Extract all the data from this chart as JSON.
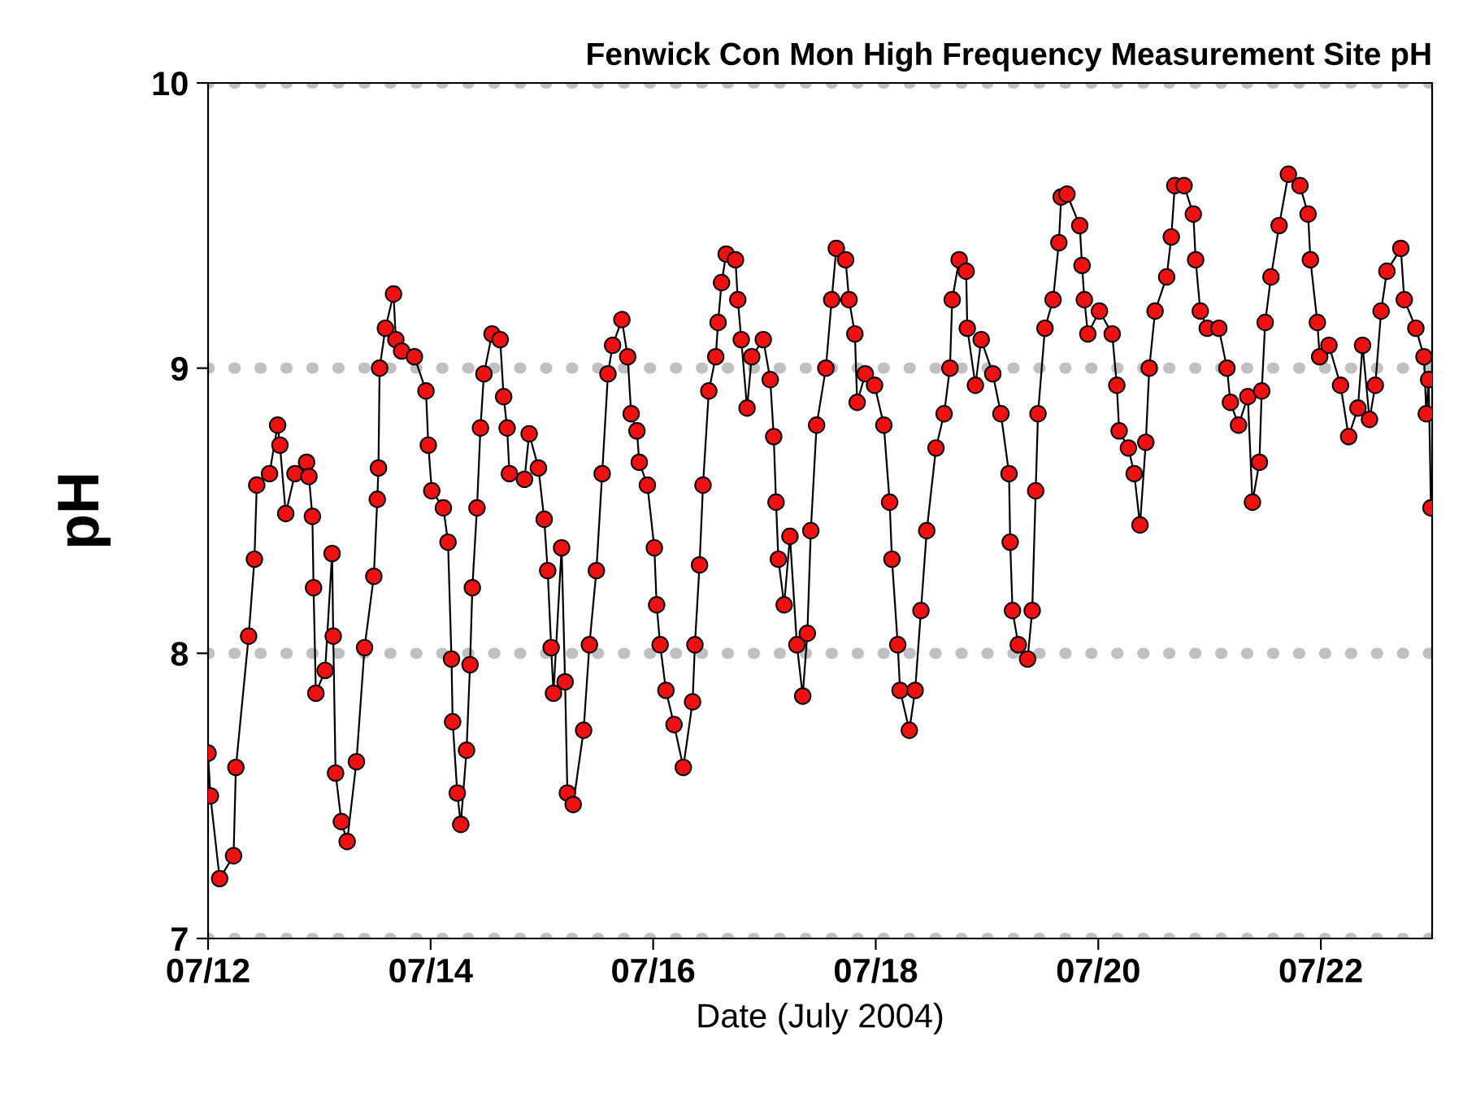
{
  "chart_data": {
    "type": "line",
    "title": "Fenwick Con Mon High Frequency Measurement Site pH",
    "xlabel": "Date (July 2004)",
    "ylabel": "pH",
    "xlim": [
      "2004-07-12",
      "2004-07-23"
    ],
    "xticks": [
      {
        "value": "2004-07-12",
        "label": "07/12"
      },
      {
        "value": "2004-07-14",
        "label": "07/14"
      },
      {
        "value": "2004-07-16",
        "label": "07/16"
      },
      {
        "value": "2004-07-18",
        "label": "07/18"
      },
      {
        "value": "2004-07-20",
        "label": "07/20"
      },
      {
        "value": "2004-07-22",
        "label": "07/22"
      }
    ],
    "ylim": [
      7,
      10
    ],
    "yticks": [
      7,
      8,
      9,
      10
    ],
    "grid": "y",
    "marker": "circle",
    "line_style": "solid",
    "series": [
      {
        "color": "#ee1111",
        "x": [
          "2004-07-12T00:00",
          "2004-07-12T00:30",
          "2004-07-12T02:30",
          "2004-07-12T05:30",
          "2004-07-12T06:00",
          "2004-07-12T08:45",
          "2004-07-12T10:00",
          "2004-07-12T10:30",
          "2004-07-12T13:15",
          "2004-07-12T15:00",
          "2004-07-12T15:30",
          "2004-07-12T16:45",
          "2004-07-12T18:45",
          "2004-07-12T21:15",
          "2004-07-12T21:45",
          "2004-07-12T22:30",
          "2004-07-12T22:45",
          "2004-07-12T23:15",
          "2004-07-13T01:15",
          "2004-07-13T02:45",
          "2004-07-13T03:00",
          "2004-07-13T03:30",
          "2004-07-13T04:45",
          "2004-07-13T06:00",
          "2004-07-13T08:00",
          "2004-07-13T09:45",
          "2004-07-13T11:45",
          "2004-07-13T12:30",
          "2004-07-13T12:45",
          "2004-07-13T13:00",
          "2004-07-13T14:15",
          "2004-07-13T16:00",
          "2004-07-13T16:30",
          "2004-07-13T17:45",
          "2004-07-13T20:30",
          "2004-07-13T23:00",
          "2004-07-13T23:30",
          "2004-07-14T00:15",
          "2004-07-14T02:45",
          "2004-07-14T03:45",
          "2004-07-14T04:30",
          "2004-07-14T04:45",
          "2004-07-14T05:45",
          "2004-07-14T06:30",
          "2004-07-14T07:45",
          "2004-07-14T08:30",
          "2004-07-14T09:00",
          "2004-07-14T10:00",
          "2004-07-14T10:45",
          "2004-07-14T11:30",
          "2004-07-14T13:15",
          "2004-07-14T15:00",
          "2004-07-14T15:45",
          "2004-07-14T16:30",
          "2004-07-14T17:00",
          "2004-07-14T20:15",
          "2004-07-14T21:15",
          "2004-07-14T23:15",
          "2004-07-15T00:30",
          "2004-07-15T01:15",
          "2004-07-15T02:00",
          "2004-07-15T02:30",
          "2004-07-15T04:15",
          "2004-07-15T05:00",
          "2004-07-15T05:30",
          "2004-07-15T06:45",
          "2004-07-15T09:00",
          "2004-07-15T10:15",
          "2004-07-15T11:45",
          "2004-07-15T13:00",
          "2004-07-15T14:15",
          "2004-07-15T15:15",
          "2004-07-15T17:15",
          "2004-07-15T18:30",
          "2004-07-15T19:15",
          "2004-07-15T20:30",
          "2004-07-15T21:00",
          "2004-07-15T22:45",
          "2004-07-16T00:15",
          "2004-07-16T00:45",
          "2004-07-16T01:30",
          "2004-07-16T02:45",
          "2004-07-16T04:30",
          "2004-07-16T06:30",
          "2004-07-16T08:30",
          "2004-07-16T09:00",
          "2004-07-16T10:00",
          "2004-07-16T10:45",
          "2004-07-16T12:00",
          "2004-07-16T13:30",
          "2004-07-16T14:00",
          "2004-07-16T14:45",
          "2004-07-16T15:45",
          "2004-07-16T17:45",
          "2004-07-16T18:15",
          "2004-07-16T19:00",
          "2004-07-16T20:15",
          "2004-07-16T21:15",
          "2004-07-16T23:45",
          "2004-07-17T01:15",
          "2004-07-17T02:00",
          "2004-07-17T02:30",
          "2004-07-17T03:00",
          "2004-07-17T04:15",
          "2004-07-17T05:30",
          "2004-07-17T07:00",
          "2004-07-17T08:15",
          "2004-07-17T09:15",
          "2004-07-17T10:00",
          "2004-07-17T11:15",
          "2004-07-17T13:15",
          "2004-07-17T14:30",
          "2004-07-17T15:30",
          "2004-07-17T17:30",
          "2004-07-17T18:15",
          "2004-07-17T19:30",
          "2004-07-17T20:00",
          "2004-07-17T21:45",
          "2004-07-17T23:45",
          "2004-07-18T01:45",
          "2004-07-18T03:00",
          "2004-07-18T03:30",
          "2004-07-18T04:45",
          "2004-07-18T05:15",
          "2004-07-18T07:15",
          "2004-07-18T08:30",
          "2004-07-18T09:45",
          "2004-07-18T11:00",
          "2004-07-18T13:00",
          "2004-07-18T14:45",
          "2004-07-18T16:00",
          "2004-07-18T16:30",
          "2004-07-18T18:00",
          "2004-07-18T19:30",
          "2004-07-18T19:45",
          "2004-07-18T21:30",
          "2004-07-18T22:45",
          "2004-07-19T01:15",
          "2004-07-19T03:00",
          "2004-07-19T04:45",
          "2004-07-19T05:00",
          "2004-07-19T05:30",
          "2004-07-19T06:45",
          "2004-07-19T08:45",
          "2004-07-19T09:45",
          "2004-07-19T10:30",
          "2004-07-19T11:00",
          "2004-07-19T12:30",
          "2004-07-19T14:15",
          "2004-07-19T15:30",
          "2004-07-19T16:00",
          "2004-07-19T17:15",
          "2004-07-19T20:00",
          "2004-07-19T20:30",
          "2004-07-19T21:00",
          "2004-07-19T21:45",
          "2004-07-20T00:15",
          "2004-07-20T03:00",
          "2004-07-20T04:00",
          "2004-07-20T04:30",
          "2004-07-20T06:30",
          "2004-07-20T07:45",
          "2004-07-20T09:00",
          "2004-07-20T10:15",
          "2004-07-20T11:00",
          "2004-07-20T12:15",
          "2004-07-20T14:45",
          "2004-07-20T15:45",
          "2004-07-20T16:30",
          "2004-07-20T18:30",
          "2004-07-20T20:30",
          "2004-07-20T21:00",
          "2004-07-20T22:00",
          "2004-07-20T23:30",
          "2004-07-21T02:00",
          "2004-07-21T03:45",
          "2004-07-21T04:30",
          "2004-07-21T06:15",
          "2004-07-21T08:15",
          "2004-07-21T09:15",
          "2004-07-21T10:45",
          "2004-07-21T11:15",
          "2004-07-21T12:00",
          "2004-07-21T13:15",
          "2004-07-21T15:00",
          "2004-07-21T17:00",
          "2004-07-21T19:30",
          "2004-07-21T21:15",
          "2004-07-21T21:45",
          "2004-07-21T23:15",
          "2004-07-21T23:45",
          "2004-07-22T01:45",
          "2004-07-22T04:15",
          "2004-07-22T06:00",
          "2004-07-22T08:00",
          "2004-07-22T09:00",
          "2004-07-22T10:30",
          "2004-07-22T11:45",
          "2004-07-22T13:00",
          "2004-07-22T14:15",
          "2004-07-22T17:15",
          "2004-07-22T18:00",
          "2004-07-22T20:30",
          "2004-07-22T22:15",
          "2004-07-22T22:45",
          "2004-07-22T23:15",
          "2004-07-22T23:45"
        ],
        "values": [
          7.65,
          7.5,
          7.21,
          7.29,
          7.6,
          8.06,
          8.33,
          8.59,
          8.63,
          8.8,
          8.73,
          8.49,
          8.63,
          8.67,
          8.62,
          8.48,
          8.23,
          7.86,
          7.94,
          8.35,
          8.06,
          7.58,
          7.41,
          7.34,
          7.62,
          8.02,
          8.27,
          8.54,
          8.65,
          9.0,
          9.14,
          9.26,
          9.1,
          9.06,
          9.04,
          8.92,
          8.73,
          8.57,
          8.51,
          8.39,
          7.98,
          7.76,
          7.51,
          7.4,
          7.66,
          7.96,
          8.23,
          8.51,
          8.79,
          8.98,
          9.12,
          9.1,
          8.9,
          8.79,
          8.63,
          8.61,
          8.77,
          8.65,
          8.47,
          8.29,
          8.02,
          7.86,
          8.37,
          7.9,
          7.51,
          7.47,
          7.73,
          8.03,
          8.29,
          8.63,
          8.98,
          9.08,
          9.17,
          9.04,
          8.84,
          8.78,
          8.67,
          8.59,
          8.37,
          8.17,
          8.03,
          7.87,
          7.75,
          7.6,
          7.83,
          8.03,
          8.31,
          8.59,
          8.92,
          9.04,
          9.16,
          9.3,
          9.4,
          9.38,
          9.24,
          9.1,
          8.86,
          9.04,
          9.1,
          8.96,
          8.76,
          8.53,
          8.33,
          8.17,
          8.41,
          8.03,
          7.85,
          8.07,
          8.43,
          8.8,
          9.0,
          9.24,
          9.42,
          9.38,
          9.24,
          9.12,
          8.88,
          8.98,
          8.94,
          8.8,
          8.53,
          8.33,
          8.03,
          7.87,
          7.73,
          7.87,
          8.15,
          8.43,
          8.72,
          8.84,
          9.0,
          9.24,
          9.38,
          9.34,
          9.14,
          8.94,
          9.1,
          8.98,
          8.84,
          8.63,
          8.39,
          8.15,
          8.03,
          7.98,
          8.15,
          8.57,
          8.84,
          9.14,
          9.24,
          9.44,
          9.6,
          9.61,
          9.5,
          9.36,
          9.24,
          9.12,
          9.2,
          9.12,
          8.94,
          8.78,
          8.72,
          8.63,
          8.45,
          8.74,
          9.0,
          9.2,
          9.32,
          9.46,
          9.64,
          9.64,
          9.54,
          9.38,
          9.2,
          9.14,
          9.14,
          9.0,
          8.88,
          8.8,
          8.9,
          8.53,
          8.67,
          8.92,
          9.16,
          9.32,
          9.5,
          9.68,
          9.64,
          9.54,
          9.38,
          9.16,
          9.04,
          9.08,
          8.94,
          8.76,
          8.86,
          9.08,
          8.82,
          8.94,
          9.2,
          9.34,
          9.42,
          9.24,
          9.14,
          9.04,
          8.84,
          8.96,
          8.51
        ]
      }
    ]
  }
}
